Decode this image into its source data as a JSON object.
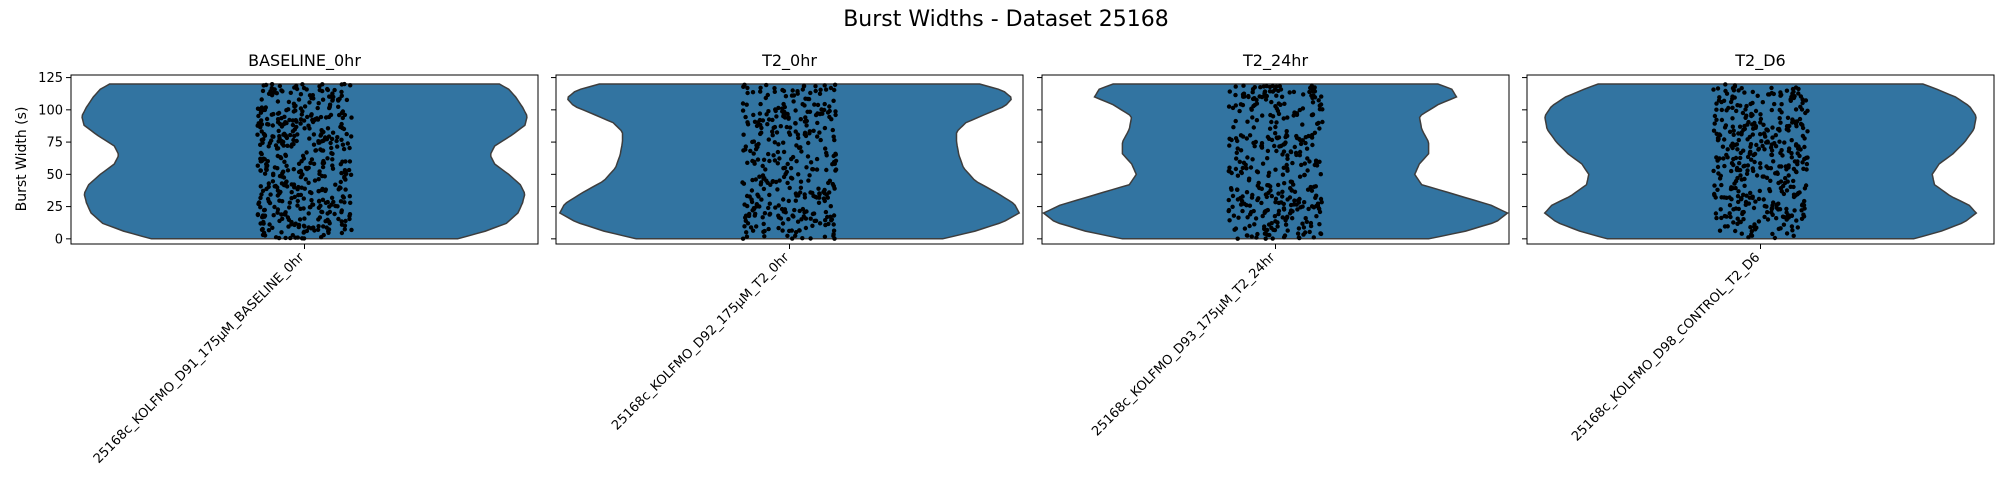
{
  "figure": {
    "suptitle": "Burst Widths - Dataset 25168",
    "ylabel": "Burst Width (s)",
    "yticks": [
      0,
      25,
      50,
      75,
      100,
      125
    ],
    "ylim": [
      -4,
      127
    ]
  },
  "colors": {
    "violin": "#3274a1",
    "violin_edge": "#3d3d3d",
    "points": "#000000"
  },
  "chart_data": [
    {
      "type": "violin",
      "title": "BASELINE_0hr",
      "category": "25168c_KOLFMO_D91_175µM_BASELINE_0hr",
      "range": [
        0,
        120
      ],
      "n_points": 480,
      "density_profile": [
        [
          0,
          0.66
        ],
        [
          6,
          0.78
        ],
        [
          12,
          0.87
        ],
        [
          20,
          0.92
        ],
        [
          28,
          0.94
        ],
        [
          35,
          0.95
        ],
        [
          42,
          0.93
        ],
        [
          50,
          0.88
        ],
        [
          58,
          0.82
        ],
        [
          65,
          0.8
        ],
        [
          72,
          0.82
        ],
        [
          80,
          0.89
        ],
        [
          88,
          0.95
        ],
        [
          95,
          0.96
        ],
        [
          102,
          0.94
        ],
        [
          110,
          0.91
        ],
        [
          116,
          0.88
        ],
        [
          120,
          0.84
        ]
      ]
    },
    {
      "type": "violin",
      "title": "T2_0hr",
      "category": "25168c_KOLFMO_D92_175µM_T2_0hr",
      "range": [
        0,
        120
      ],
      "n_points": 360,
      "density_profile": [
        [
          0,
          0.66
        ],
        [
          6,
          0.8
        ],
        [
          13,
          0.92
        ],
        [
          20,
          0.99
        ],
        [
          27,
          0.97
        ],
        [
          35,
          0.9
        ],
        [
          45,
          0.8
        ],
        [
          55,
          0.75
        ],
        [
          65,
          0.73
        ],
        [
          75,
          0.72
        ],
        [
          83,
          0.72
        ],
        [
          90,
          0.76
        ],
        [
          97,
          0.85
        ],
        [
          103,
          0.93
        ],
        [
          109,
          0.96
        ],
        [
          115,
          0.92
        ],
        [
          120,
          0.82
        ]
      ]
    },
    {
      "type": "violin",
      "title": "T2_24hr",
      "category": "25168c_KOLFMO_D93_175µM_T2_24hr",
      "range": [
        0,
        120
      ],
      "n_points": 380,
      "density_profile": [
        [
          0,
          0.66
        ],
        [
          6,
          0.82
        ],
        [
          13,
          0.95
        ],
        [
          20,
          1.0
        ],
        [
          26,
          0.93
        ],
        [
          33,
          0.8
        ],
        [
          42,
          0.63
        ],
        [
          50,
          0.6
        ],
        [
          58,
          0.62
        ],
        [
          66,
          0.66
        ],
        [
          75,
          0.66
        ],
        [
          85,
          0.63
        ],
        [
          95,
          0.62
        ],
        [
          104,
          0.7
        ],
        [
          110,
          0.78
        ],
        [
          116,
          0.76
        ],
        [
          120,
          0.7
        ]
      ]
    },
    {
      "type": "violin",
      "title": "T2_D6",
      "category": "25168c_KOLFMO_D98_CONTROL_T2_D6",
      "range": [
        0,
        120
      ],
      "n_points": 420,
      "density_profile": [
        [
          0,
          0.66
        ],
        [
          6,
          0.78
        ],
        [
          13,
          0.88
        ],
        [
          20,
          0.93
        ],
        [
          26,
          0.9
        ],
        [
          33,
          0.82
        ],
        [
          42,
          0.75
        ],
        [
          50,
          0.74
        ],
        [
          58,
          0.77
        ],
        [
          66,
          0.83
        ],
        [
          75,
          0.88
        ],
        [
          85,
          0.92
        ],
        [
          95,
          0.93
        ],
        [
          103,
          0.9
        ],
        [
          110,
          0.84
        ],
        [
          116,
          0.76
        ],
        [
          120,
          0.7
        ]
      ]
    }
  ]
}
